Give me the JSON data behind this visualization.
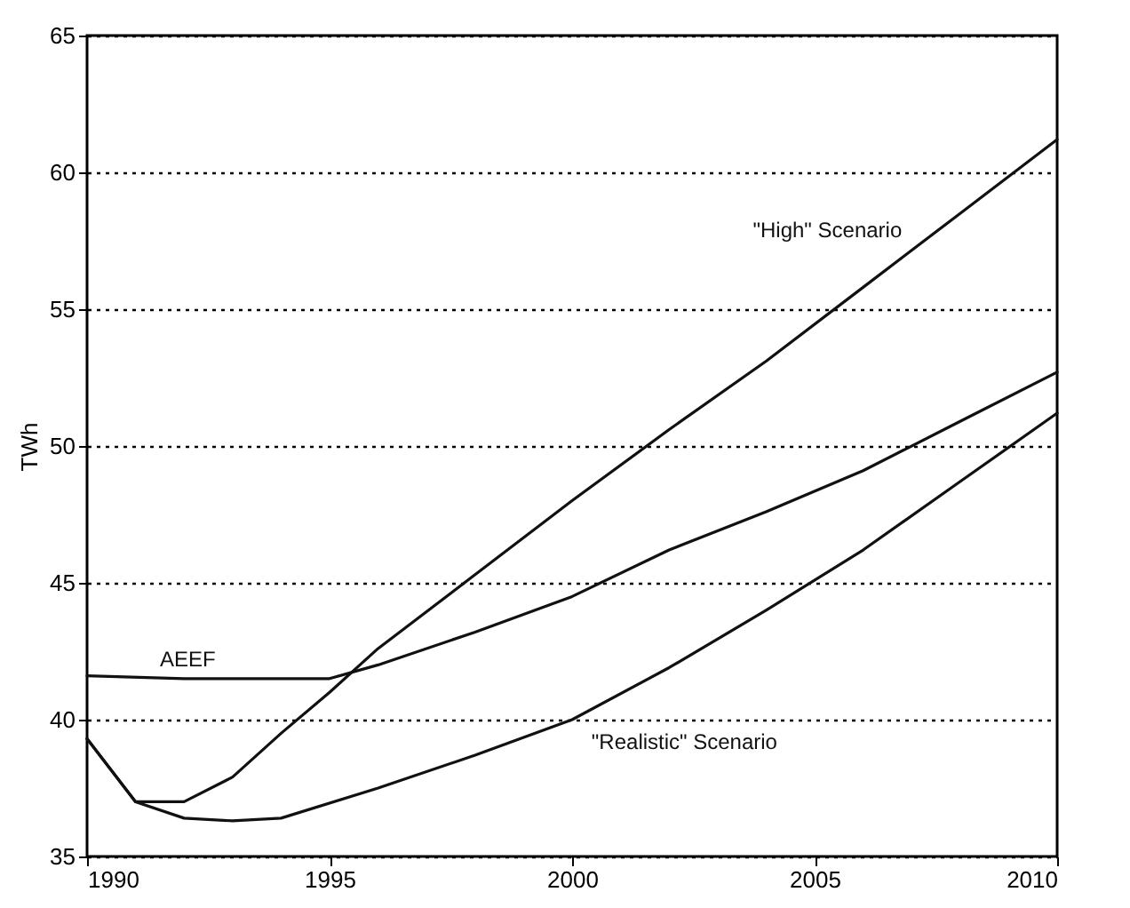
{
  "chart_data": {
    "type": "line",
    "ylabel": "TWh",
    "xlim": [
      1990,
      2010
    ],
    "ylim": [
      35,
      65
    ],
    "xticks": [
      1990,
      1995,
      2000,
      2005,
      2010
    ],
    "yticks": [
      35,
      40,
      45,
      50,
      55,
      60,
      65
    ],
    "grid": "y",
    "line_style": "solid",
    "marker": "none",
    "series": [
      {
        "name": "\"High\" Scenario",
        "color": "#111111",
        "x": [
          1990,
          1991,
          1992,
          1993,
          1994,
          1995,
          1996,
          1998,
          2000,
          2002,
          2004,
          2006,
          2008,
          2010
        ],
        "values": [
          39.3,
          37.0,
          37.0,
          37.9,
          39.5,
          41.0,
          42.6,
          45.3,
          48.0,
          50.6,
          53.1,
          55.8,
          58.5,
          61.2
        ]
      },
      {
        "name": "AEEF",
        "color": "#111111",
        "x": [
          1990,
          1992,
          1995,
          1996,
          1998,
          2000,
          2002,
          2004,
          2006,
          2008,
          2010
        ],
        "values": [
          41.6,
          41.5,
          41.5,
          42.0,
          43.2,
          44.5,
          46.2,
          47.6,
          49.1,
          50.9,
          52.7
        ]
      },
      {
        "name": "\"Realistic\" Scenario",
        "color": "#111111",
        "x": [
          1990,
          1991,
          1992,
          1993,
          1994,
          1996,
          1998,
          2000,
          2002,
          2004,
          2006,
          2008,
          2010
        ],
        "values": [
          39.3,
          37.0,
          36.4,
          36.3,
          36.4,
          37.5,
          38.7,
          40.0,
          41.9,
          44.0,
          46.2,
          48.7,
          51.2
        ]
      }
    ]
  }
}
